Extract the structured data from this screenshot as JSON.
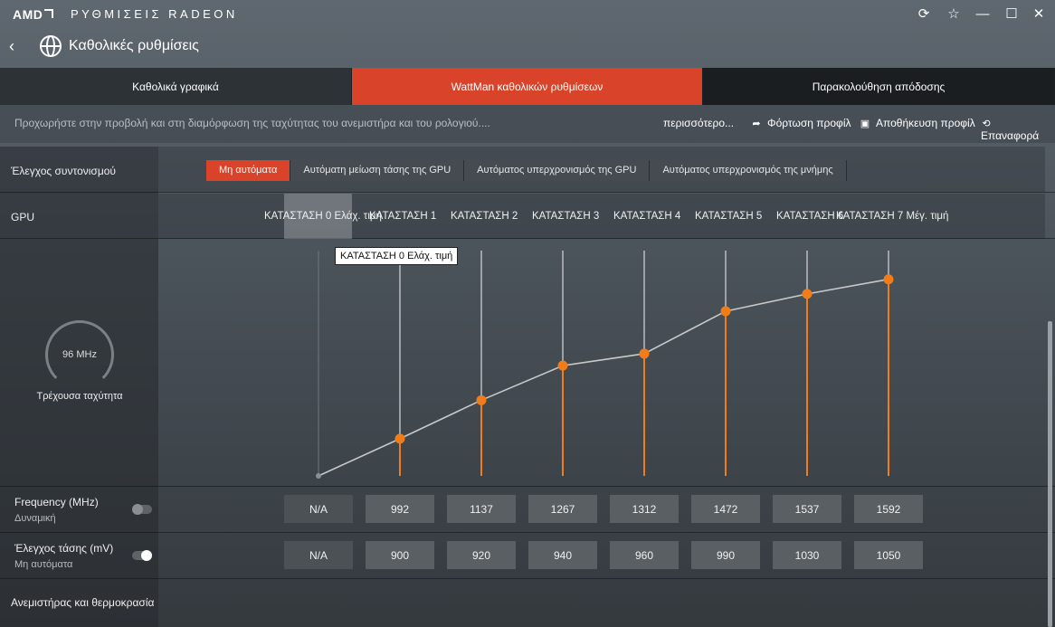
{
  "titlebar": {
    "brand": "AMD",
    "app_title": "ΡΥΘΜΙΣΕΙΣ RADEON",
    "icons": [
      "refresh-icon",
      "star-icon",
      "minimize-icon",
      "maximize-icon",
      "close-icon"
    ]
  },
  "header": {
    "title": "Καθολικές ρυθμίσεις"
  },
  "tabs": [
    {
      "label": "Καθολικά γραφικά",
      "active": false
    },
    {
      "label": "WattMan καθολικών ρυθμίσεων",
      "active": true
    },
    {
      "label": "Παρακολούθηση απόδοσης",
      "active": false
    }
  ],
  "actionbar": {
    "hint": "Προχωρήστε στην προβολή και στη διαμόρφωση της ταχύτητας του ανεμιστήρα και του ρολογιού....",
    "more": "περισσότερο...",
    "load": "Φόρτωση προφίλ",
    "save": "Αποθήκευση προφίλ",
    "reset": "Επαναφορά"
  },
  "tuning": {
    "label": "Έλεγχος συντονισμού",
    "options": [
      "Μη αυτόματα",
      "Αυτόματη μείωση τάσης της GPU",
      "Αυτόματος υπερχρονισμός της GPU",
      "Αυτόματος υπερχρονισμός της μνήμης"
    ],
    "selected": "Μη αυτόματα"
  },
  "gpu": {
    "label": "GPU",
    "states": [
      "ΚΑΤΑΣΤΑΣΗ 0 Ελάχ. τιμή",
      "ΚΑΤΑΣΤΑΣΗ 1",
      "ΚΑΤΑΣΤΑΣΗ 2",
      "ΚΑΤΑΣΤΑΣΗ 3",
      "ΚΑΤΑΣΤΑΣΗ 4",
      "ΚΑΤΑΣΤΑΣΗ 5",
      "ΚΑΤΑΣΤΑΣΗ 6",
      "ΚΑΤΑΣΤΑΣΗ 7 Μέγ. τιμή"
    ],
    "tooltip": "ΚΑΤΑΣΤΑΣΗ 0 Ελάχ. τιμή"
  },
  "gauge": {
    "value": "96 MHz",
    "label": "Τρέχουσα ταχύτητα"
  },
  "chart_data": {
    "type": "line",
    "categories": [
      "ΚΑΤΑΣΤΑΣΗ 0",
      "ΚΑΤΑΣΤΑΣΗ 1",
      "ΚΑΤΑΣΤΑΣΗ 2",
      "ΚΑΤΑΣΤΑΣΗ 3",
      "ΚΑΤΑΣΤΑΣΗ 4",
      "ΚΑΤΑΣΤΑΣΗ 5",
      "ΚΑΤΑΣΤΑΣΗ 6",
      "ΚΑΤΑΣΤΑΣΗ 7"
    ],
    "values": [
      null,
      992,
      1137,
      1267,
      1312,
      1472,
      1537,
      1592
    ],
    "ylim": [
      852,
      1700
    ],
    "line_color": "#c8c8c8",
    "point_color": "#f07c1a"
  },
  "frequency": {
    "label": "Frequency (MHz)",
    "mode": "Δυναμική",
    "toggle_on": false,
    "values": [
      "N/A",
      "992",
      "1137",
      "1267",
      "1312",
      "1472",
      "1537",
      "1592"
    ]
  },
  "voltage": {
    "label": "Έλεγχος τάσης (mV)",
    "mode": "Μη αυτόματα",
    "toggle_on": true,
    "values": [
      "N/A",
      "900",
      "920",
      "940",
      "960",
      "990",
      "1030",
      "1050"
    ]
  },
  "fan": {
    "label": "Ανεμιστήρας και θερμοκρασία"
  },
  "colors": {
    "accent": "#d9432a",
    "orange": "#f07c1a"
  }
}
